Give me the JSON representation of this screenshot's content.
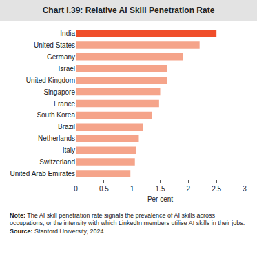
{
  "chart_data": {
    "type": "bar",
    "orientation": "horizontal",
    "title": "Chart I.39: Relative AI Skill Penetration Rate",
    "x_label": "Per cent",
    "categories": [
      "India",
      "United States",
      "Germany",
      "Israel",
      "United Kingdom",
      "Singapore",
      "France",
      "South Korea",
      "Brazil",
      "Netherlands",
      "Italy",
      "Switzerland",
      "United Arab Emirates"
    ],
    "values": [
      2.5,
      2.2,
      1.9,
      1.62,
      1.62,
      1.5,
      1.48,
      1.35,
      1.2,
      1.12,
      1.07,
      1.05,
      0.97
    ],
    "colors": [
      "#f04e2a",
      "#f5a48a",
      "#f5a48a",
      "#f5a48a",
      "#f5a48a",
      "#f5a48a",
      "#f5a48a",
      "#f5a48a",
      "#f5a48a",
      "#f5a48a",
      "#f5a48a",
      "#f5a48a",
      "#f5a48a"
    ],
    "xlim": [
      0,
      3
    ],
    "xticks": [
      0,
      0.5,
      1,
      1.5,
      2,
      2.5,
      3
    ],
    "grid": false,
    "annotations": [
      "Note: The AI skill penetration rate signals the prevalence of AI skills across occupations, or the intensity with which LinkedIn members utilise AI skills in their jobs.",
      "Source: Stanford University, 2024."
    ]
  }
}
